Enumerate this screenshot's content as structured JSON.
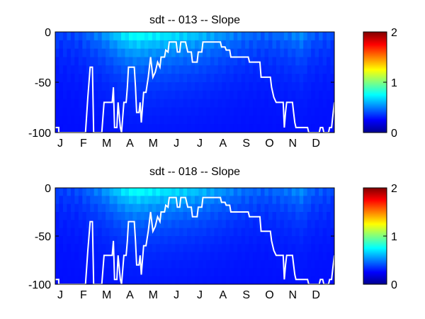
{
  "chart_data": [
    {
      "type": "heatmap",
      "title": "sdt -- 013 -- Slope",
      "xlabel": "",
      "ylabel": "",
      "x_categories": [
        "J",
        "F",
        "M",
        "A",
        "M",
        "J",
        "J",
        "A",
        "S",
        "O",
        "N",
        "D"
      ],
      "yticks": [
        0,
        -50,
        -100
      ],
      "ylim": [
        -100,
        0
      ],
      "colorbar": {
        "ticks": [
          0,
          1,
          2
        ],
        "range": [
          0,
          2
        ],
        "colormap": "jet"
      },
      "line_color": "#ffffff",
      "heat_profile": [
        {
          "month": 0.0,
          "value": 0.12
        },
        {
          "month": 1.0,
          "value": 0.15
        },
        {
          "month": 2.0,
          "value": 0.3
        },
        {
          "month": 2.5,
          "value": 0.42
        },
        {
          "month": 3.0,
          "value": 0.55
        },
        {
          "month": 3.5,
          "value": 0.62
        },
        {
          "month": 4.0,
          "value": 0.58
        },
        {
          "month": 5.0,
          "value": 0.52
        },
        {
          "month": 6.0,
          "value": 0.45
        },
        {
          "month": 7.0,
          "value": 0.35
        },
        {
          "month": 8.0,
          "value": 0.25
        },
        {
          "month": 9.0,
          "value": 0.2
        },
        {
          "month": 10.0,
          "value": 0.25
        },
        {
          "month": 10.6,
          "value": 0.32
        },
        {
          "month": 11.0,
          "value": 0.2
        },
        {
          "month": 12.0,
          "value": 0.15
        }
      ],
      "depth_line": [
        {
          "month": 0.0,
          "depth": -95
        },
        {
          "month": 0.15,
          "depth": -95
        },
        {
          "month": 0.15,
          "depth": -100
        },
        {
          "month": 1.3,
          "depth": -100
        },
        {
          "month": 1.4,
          "depth": -65
        },
        {
          "month": 1.5,
          "depth": -35
        },
        {
          "month": 1.6,
          "depth": -35
        },
        {
          "month": 1.65,
          "depth": -100
        },
        {
          "month": 2.0,
          "depth": -100
        },
        {
          "month": 2.1,
          "depth": -70
        },
        {
          "month": 2.45,
          "depth": -70
        },
        {
          "month": 2.5,
          "depth": -55
        },
        {
          "month": 2.55,
          "depth": -95
        },
        {
          "month": 2.65,
          "depth": -95
        },
        {
          "month": 2.7,
          "depth": -70
        },
        {
          "month": 2.8,
          "depth": -95
        },
        {
          "month": 2.85,
          "depth": -100
        },
        {
          "month": 2.95,
          "depth": -70
        },
        {
          "month": 3.05,
          "depth": -70
        },
        {
          "month": 3.1,
          "depth": -55
        },
        {
          "month": 3.15,
          "depth": -35
        },
        {
          "month": 3.4,
          "depth": -35
        },
        {
          "month": 3.45,
          "depth": -55
        },
        {
          "month": 3.5,
          "depth": -80
        },
        {
          "month": 3.6,
          "depth": -80
        },
        {
          "month": 3.65,
          "depth": -70
        },
        {
          "month": 3.7,
          "depth": -90
        },
        {
          "month": 3.8,
          "depth": -60
        },
        {
          "month": 3.9,
          "depth": -60
        },
        {
          "month": 4.0,
          "depth": -45
        },
        {
          "month": 4.1,
          "depth": -25
        },
        {
          "month": 4.2,
          "depth": -45
        },
        {
          "month": 4.3,
          "depth": -40
        },
        {
          "month": 4.4,
          "depth": -30
        },
        {
          "month": 4.5,
          "depth": -35
        },
        {
          "month": 4.55,
          "depth": -25
        },
        {
          "month": 4.7,
          "depth": -25
        },
        {
          "month": 4.75,
          "depth": -18
        },
        {
          "month": 4.85,
          "depth": -20
        },
        {
          "month": 4.9,
          "depth": -10
        },
        {
          "month": 5.2,
          "depth": -10
        },
        {
          "month": 5.25,
          "depth": -20
        },
        {
          "month": 5.35,
          "depth": -20
        },
        {
          "month": 5.4,
          "depth": -10
        },
        {
          "month": 5.6,
          "depth": -10
        },
        {
          "month": 5.7,
          "depth": -20
        },
        {
          "month": 5.85,
          "depth": -20
        },
        {
          "month": 5.9,
          "depth": -30
        },
        {
          "month": 6.1,
          "depth": -30
        },
        {
          "month": 6.15,
          "depth": -20
        },
        {
          "month": 6.3,
          "depth": -20
        },
        {
          "month": 6.35,
          "depth": -10
        },
        {
          "month": 7.1,
          "depth": -10
        },
        {
          "month": 7.15,
          "depth": -15
        },
        {
          "month": 7.3,
          "depth": -15
        },
        {
          "month": 7.35,
          "depth": -18
        },
        {
          "month": 7.5,
          "depth": -18
        },
        {
          "month": 7.55,
          "depth": -25
        },
        {
          "month": 8.3,
          "depth": -25
        },
        {
          "month": 8.35,
          "depth": -30
        },
        {
          "month": 8.8,
          "depth": -30
        },
        {
          "month": 8.85,
          "depth": -45
        },
        {
          "month": 9.25,
          "depth": -45
        },
        {
          "month": 9.3,
          "depth": -55
        },
        {
          "month": 9.4,
          "depth": -65
        },
        {
          "month": 9.5,
          "depth": -70
        },
        {
          "month": 9.8,
          "depth": -70
        },
        {
          "month": 9.85,
          "depth": -95
        },
        {
          "month": 9.9,
          "depth": -80
        },
        {
          "month": 9.95,
          "depth": -70
        },
        {
          "month": 10.2,
          "depth": -70
        },
        {
          "month": 10.25,
          "depth": -80
        },
        {
          "month": 10.3,
          "depth": -90
        },
        {
          "month": 10.35,
          "depth": -95
        },
        {
          "month": 10.85,
          "depth": -95
        },
        {
          "month": 10.9,
          "depth": -100
        },
        {
          "month": 11.35,
          "depth": -100
        },
        {
          "month": 11.4,
          "depth": -95
        },
        {
          "month": 11.5,
          "depth": -95
        },
        {
          "month": 11.55,
          "depth": -100
        },
        {
          "month": 11.75,
          "depth": -100
        },
        {
          "month": 11.8,
          "depth": -95
        },
        {
          "month": 11.88,
          "depth": -95
        },
        {
          "month": 11.95,
          "depth": -80
        },
        {
          "month": 12.0,
          "depth": -70
        }
      ]
    },
    {
      "type": "heatmap",
      "title": "sdt -- 018 -- Slope",
      "xlabel": "",
      "ylabel": "",
      "x_categories": [
        "J",
        "F",
        "M",
        "A",
        "M",
        "J",
        "J",
        "A",
        "S",
        "O",
        "N",
        "D"
      ],
      "yticks": [
        0,
        -50,
        -100
      ],
      "ylim": [
        -100,
        0
      ],
      "colorbar": {
        "ticks": [
          0,
          1,
          2
        ],
        "range": [
          0,
          2
        ],
        "colormap": "jet"
      },
      "line_color": "#ffffff",
      "heat_profile": [
        {
          "month": 0.0,
          "value": 0.12
        },
        {
          "month": 1.0,
          "value": 0.15
        },
        {
          "month": 2.0,
          "value": 0.3
        },
        {
          "month": 2.5,
          "value": 0.42
        },
        {
          "month": 3.0,
          "value": 0.55
        },
        {
          "month": 3.5,
          "value": 0.62
        },
        {
          "month": 4.0,
          "value": 0.58
        },
        {
          "month": 5.0,
          "value": 0.52
        },
        {
          "month": 6.0,
          "value": 0.45
        },
        {
          "month": 7.0,
          "value": 0.35
        },
        {
          "month": 8.0,
          "value": 0.25
        },
        {
          "month": 9.0,
          "value": 0.2
        },
        {
          "month": 10.0,
          "value": 0.25
        },
        {
          "month": 10.6,
          "value": 0.32
        },
        {
          "month": 11.0,
          "value": 0.2
        },
        {
          "month": 12.0,
          "value": 0.15
        }
      ],
      "depth_line": [
        {
          "month": 0.0,
          "depth": -95
        },
        {
          "month": 0.15,
          "depth": -95
        },
        {
          "month": 0.15,
          "depth": -100
        },
        {
          "month": 1.3,
          "depth": -100
        },
        {
          "month": 1.4,
          "depth": -65
        },
        {
          "month": 1.5,
          "depth": -35
        },
        {
          "month": 1.6,
          "depth": -35
        },
        {
          "month": 1.65,
          "depth": -100
        },
        {
          "month": 2.0,
          "depth": -100
        },
        {
          "month": 2.1,
          "depth": -70
        },
        {
          "month": 2.45,
          "depth": -70
        },
        {
          "month": 2.5,
          "depth": -55
        },
        {
          "month": 2.55,
          "depth": -95
        },
        {
          "month": 2.65,
          "depth": -95
        },
        {
          "month": 2.7,
          "depth": -70
        },
        {
          "month": 2.8,
          "depth": -95
        },
        {
          "month": 2.85,
          "depth": -100
        },
        {
          "month": 2.95,
          "depth": -70
        },
        {
          "month": 3.05,
          "depth": -70
        },
        {
          "month": 3.1,
          "depth": -55
        },
        {
          "month": 3.15,
          "depth": -35
        },
        {
          "month": 3.4,
          "depth": -35
        },
        {
          "month": 3.45,
          "depth": -55
        },
        {
          "month": 3.5,
          "depth": -80
        },
        {
          "month": 3.6,
          "depth": -80
        },
        {
          "month": 3.65,
          "depth": -70
        },
        {
          "month": 3.7,
          "depth": -90
        },
        {
          "month": 3.8,
          "depth": -60
        },
        {
          "month": 3.9,
          "depth": -60
        },
        {
          "month": 4.0,
          "depth": -45
        },
        {
          "month": 4.1,
          "depth": -25
        },
        {
          "month": 4.2,
          "depth": -45
        },
        {
          "month": 4.3,
          "depth": -40
        },
        {
          "month": 4.4,
          "depth": -30
        },
        {
          "month": 4.5,
          "depth": -35
        },
        {
          "month": 4.55,
          "depth": -25
        },
        {
          "month": 4.7,
          "depth": -25
        },
        {
          "month": 4.75,
          "depth": -18
        },
        {
          "month": 4.85,
          "depth": -20
        },
        {
          "month": 4.9,
          "depth": -10
        },
        {
          "month": 5.2,
          "depth": -10
        },
        {
          "month": 5.25,
          "depth": -20
        },
        {
          "month": 5.35,
          "depth": -20
        },
        {
          "month": 5.4,
          "depth": -10
        },
        {
          "month": 5.6,
          "depth": -10
        },
        {
          "month": 5.7,
          "depth": -20
        },
        {
          "month": 5.85,
          "depth": -20
        },
        {
          "month": 5.9,
          "depth": -30
        },
        {
          "month": 6.1,
          "depth": -30
        },
        {
          "month": 6.15,
          "depth": -20
        },
        {
          "month": 6.3,
          "depth": -20
        },
        {
          "month": 6.35,
          "depth": -10
        },
        {
          "month": 7.1,
          "depth": -10
        },
        {
          "month": 7.15,
          "depth": -15
        },
        {
          "month": 7.3,
          "depth": -15
        },
        {
          "month": 7.35,
          "depth": -18
        },
        {
          "month": 7.5,
          "depth": -18
        },
        {
          "month": 7.55,
          "depth": -25
        },
        {
          "month": 8.3,
          "depth": -25
        },
        {
          "month": 8.35,
          "depth": -30
        },
        {
          "month": 8.8,
          "depth": -30
        },
        {
          "month": 8.85,
          "depth": -45
        },
        {
          "month": 9.25,
          "depth": -45
        },
        {
          "month": 9.3,
          "depth": -55
        },
        {
          "month": 9.4,
          "depth": -65
        },
        {
          "month": 9.5,
          "depth": -70
        },
        {
          "month": 9.8,
          "depth": -70
        },
        {
          "month": 9.85,
          "depth": -95
        },
        {
          "month": 9.9,
          "depth": -80
        },
        {
          "month": 9.95,
          "depth": -70
        },
        {
          "month": 10.2,
          "depth": -70
        },
        {
          "month": 10.25,
          "depth": -80
        },
        {
          "month": 10.3,
          "depth": -90
        },
        {
          "month": 10.35,
          "depth": -95
        },
        {
          "month": 10.85,
          "depth": -95
        },
        {
          "month": 10.9,
          "depth": -100
        },
        {
          "month": 11.35,
          "depth": -100
        },
        {
          "month": 11.4,
          "depth": -95
        },
        {
          "month": 11.5,
          "depth": -95
        },
        {
          "month": 11.55,
          "depth": -100
        },
        {
          "month": 11.75,
          "depth": -100
        },
        {
          "month": 11.8,
          "depth": -95
        },
        {
          "month": 11.88,
          "depth": -95
        },
        {
          "month": 11.95,
          "depth": -80
        },
        {
          "month": 12.0,
          "depth": -70
        }
      ]
    }
  ]
}
